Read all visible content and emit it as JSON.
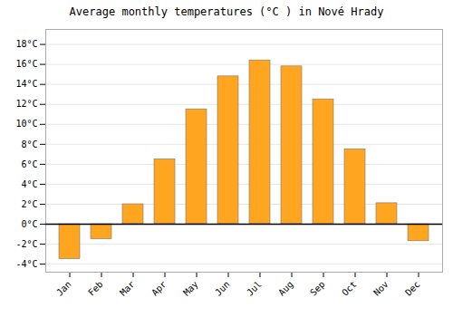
{
  "chart_data": {
    "type": "bar",
    "title": "Average monthly temperatures (°C ) in Nové Hrady",
    "categories": [
      "Jan",
      "Feb",
      "Mar",
      "Apr",
      "May",
      "Jun",
      "Jul",
      "Aug",
      "Sep",
      "Oct",
      "Nov",
      "Dec"
    ],
    "values": [
      -3.5,
      -1.5,
      2.0,
      6.5,
      11.5,
      14.8,
      16.4,
      15.8,
      12.5,
      7.5,
      2.1,
      -1.7
    ],
    "color": "#FFA520",
    "ylim": [
      -4.8,
      19.5
    ],
    "yticks": [
      {
        "value": -4,
        "label": "-4°C"
      },
      {
        "value": -2,
        "label": "-2°C"
      },
      {
        "value": 0,
        "label": "0°C"
      },
      {
        "value": 2,
        "label": "2°C"
      },
      {
        "value": 4,
        "label": "4°C"
      },
      {
        "value": 6,
        "label": "6°C"
      },
      {
        "value": 8,
        "label": "8°C"
      },
      {
        "value": 10,
        "label": "10°C"
      },
      {
        "value": 12,
        "label": "12°C"
      },
      {
        "value": 14,
        "label": "14°C"
      },
      {
        "value": 16,
        "label": "16°C"
      },
      {
        "value": 18,
        "label": "18°C"
      }
    ],
    "grid": true
  }
}
